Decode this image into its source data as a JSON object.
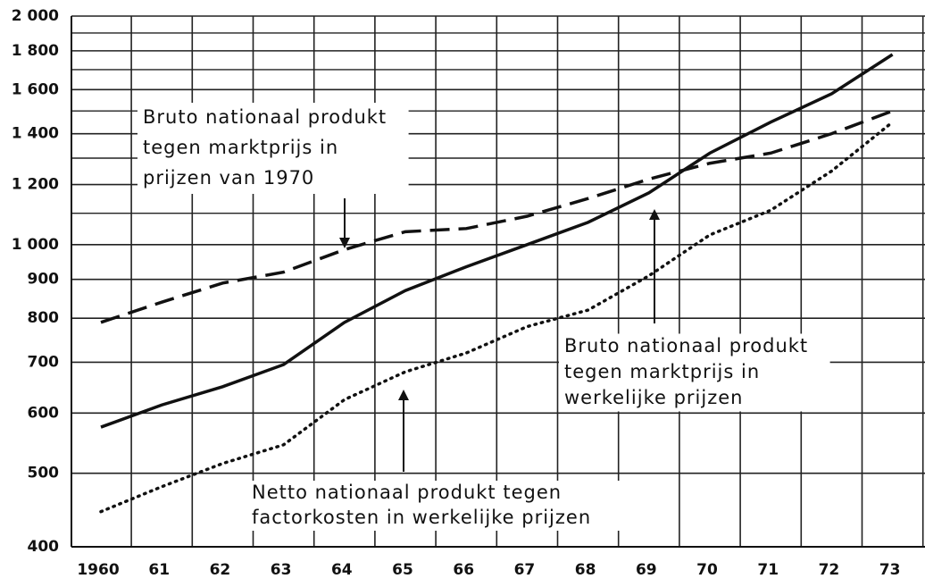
{
  "chart_data": {
    "type": "line",
    "log_scale": true,
    "grid": true,
    "categories": [
      "1960",
      "61",
      "62",
      "63",
      "64",
      "65",
      "66",
      "67",
      "68",
      "69",
      "70",
      "71",
      "72",
      "73"
    ],
    "ylim": [
      400,
      2000
    ],
    "yticks": [
      400,
      500,
      600,
      700,
      800,
      900,
      {
        "value": 1000,
        "label": "1 000"
      },
      {
        "value": 1200,
        "label": "1 200"
      },
      {
        "value": 1400,
        "label": "1 400"
      },
      {
        "value": 1600,
        "label": "1 600"
      },
      {
        "value": 1800,
        "label": "1 800"
      },
      {
        "value": 2000,
        "label": "2 000"
      }
    ],
    "y_minor_grid": [
      1100,
      1300,
      1500,
      1700,
      1900
    ],
    "series": [
      {
        "style": "dashed",
        "color": "#111111",
        "values": [
          790,
          840,
          890,
          920,
          985,
          1040,
          1050,
          1090,
          1150,
          1220,
          1280,
          1320,
          1400,
          1500
        ]
      },
      {
        "style": "solid",
        "color": "#111111",
        "values": [
          575,
          615,
          650,
          695,
          790,
          870,
          935,
          1000,
          1070,
          1170,
          1320,
          1450,
          1580,
          1780
        ]
      },
      {
        "style": "dotted",
        "color": "#111111",
        "values": [
          445,
          480,
          515,
          545,
          625,
          680,
          720,
          780,
          820,
          910,
          1030,
          1110,
          1250,
          1450
        ]
      }
    ],
    "annotations": [
      {
        "lines": [
          "Bruto nationaal produkt",
          "tegen marktprijs in",
          "prijzen van 1970"
        ]
      },
      {
        "lines": [
          "Bruto nationaal produkt",
          "tegen marktprijs in",
          "werkelijke prijzen"
        ]
      },
      {
        "lines": [
          "Netto nationaal produkt tegen",
          "factorkosten in werkelijke prijzen"
        ]
      }
    ]
  }
}
